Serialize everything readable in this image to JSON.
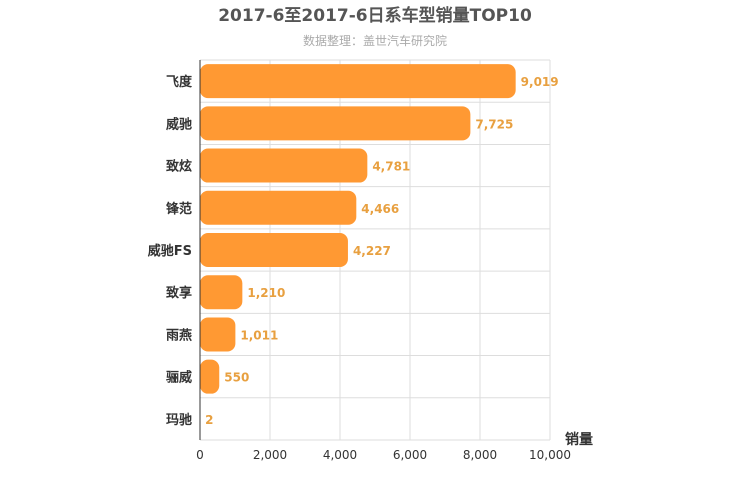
{
  "chart_data": {
    "type": "bar",
    "orientation": "horizontal",
    "title": "2017-6至2017-6日系车型销量TOP10",
    "subtitle": "数据整理：盖世汽车研究院",
    "categories": [
      "飞度",
      "威驰",
      "致炫",
      "锋范",
      "威驰FS",
      "致享",
      "雨燕",
      "骊威",
      "玛驰"
    ],
    "values": [
      9019,
      7725,
      4781,
      4466,
      4227,
      1210,
      1011,
      550,
      2
    ],
    "value_labels": [
      "9,019",
      "7,725",
      "4,781",
      "4,466",
      "4,227",
      "1,210",
      "1,011",
      "550",
      "2"
    ],
    "xlabel": "销量",
    "xlim": [
      0,
      10000
    ],
    "x_ticks": [
      0,
      2000,
      4000,
      6000,
      8000,
      10000
    ],
    "x_tick_labels": [
      "0",
      "2,000",
      "4,000",
      "6,000",
      "8,000",
      "10,000"
    ],
    "grid": true,
    "bar_color": "#ff9933",
    "label_color": "#e8a040"
  }
}
